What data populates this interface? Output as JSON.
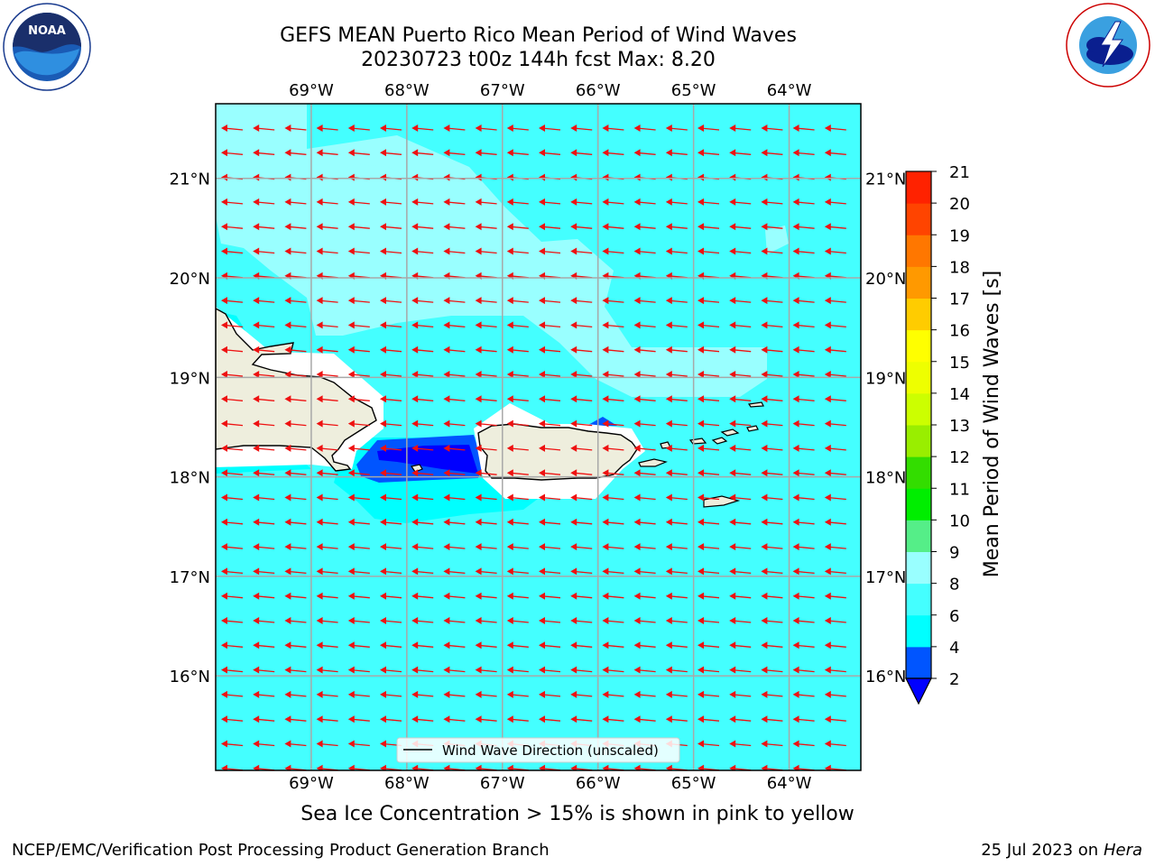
{
  "header": {
    "title_line1": "GEFS MEAN Puerto Rico Mean Period of Wind Waves",
    "title_line2": "20230723 t00z 144h fcst   Max: 8.20"
  },
  "logos": {
    "left": "noaa-logo",
    "right": "nws-logo"
  },
  "map": {
    "lon_labels": [
      "69°W",
      "68°W",
      "67°W",
      "66°W",
      "65°W",
      "64°W"
    ],
    "lat_labels": [
      "21°N",
      "20°N",
      "19°N",
      "18°N",
      "17°N",
      "16°N"
    ],
    "lon_values": [
      -69,
      -68,
      -67,
      -66,
      -65,
      -64
    ],
    "lat_values": [
      21,
      20,
      19,
      18,
      17,
      16
    ],
    "extent": {
      "lon_min": -70,
      "lon_max": -63.25,
      "lat_min": 15.05,
      "lat_max": 21.75
    },
    "legend_label": "Wind Wave Direction (unscaled)",
    "land_color": "#eeeedd",
    "arrow_color": "#ee1111"
  },
  "colorbar": {
    "label": "Mean Period of Wind Waves [s]",
    "levels": [
      2,
      4,
      6,
      8,
      9,
      10,
      11,
      12,
      13,
      14,
      15,
      16,
      17,
      18,
      19,
      20,
      21
    ],
    "colors": [
      "#0055ff",
      "#00ffff",
      "#44ffff",
      "#99ffff",
      "#55ee88",
      "#00ee00",
      "#33dd00",
      "#99ee00",
      "#ccff00",
      "#eeff00",
      "#ffff00",
      "#ffcc00",
      "#ff9900",
      "#ff7700",
      "#ff4400",
      "#ff2200"
    ],
    "tick_labels": [
      "2",
      "4",
      "6",
      "8",
      "9",
      "10",
      "11",
      "12",
      "13",
      "14",
      "15",
      "16",
      "17",
      "18",
      "19",
      "20",
      "21"
    ],
    "under_color": "#0000ff"
  },
  "footer": {
    "subtitle": "Sea Ice Concentration > 15% is shown in pink to yellow",
    "left": "NCEP/EMC/Verification Post Processing Product Generation Branch",
    "date": "25 Jul 2023 on ",
    "system": "Hera"
  }
}
